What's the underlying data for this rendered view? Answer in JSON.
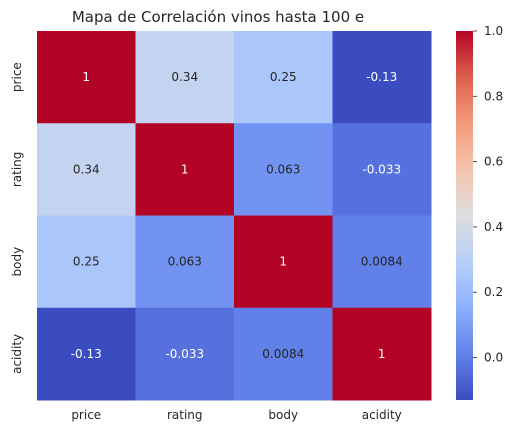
{
  "chart_data": {
    "type": "heatmap",
    "title": "Mapa de Correlación vinos hasta 100 e",
    "x_categories": [
      "price",
      "rating",
      "body",
      "acidity"
    ],
    "y_categories": [
      "price",
      "rating",
      "body",
      "acidity"
    ],
    "values": [
      [
        1,
        0.34,
        0.25,
        -0.13
      ],
      [
        0.34,
        1,
        0.063,
        -0.033
      ],
      [
        0.25,
        0.063,
        1,
        0.0084
      ],
      [
        -0.13,
        -0.033,
        0.0084,
        1
      ]
    ],
    "annotations": [
      [
        "1",
        "0.34",
        "0.25",
        "-0.13"
      ],
      [
        "0.34",
        "1",
        "0.063",
        "-0.033"
      ],
      [
        "0.25",
        "0.063",
        "1",
        "0.0084"
      ],
      [
        "-0.13",
        "-0.033",
        "0.0084",
        "1"
      ]
    ],
    "colormap": "coolwarm",
    "vmin": -0.13,
    "vmax": 1.0,
    "colorbar": {
      "ticks": [
        0.0,
        0.2,
        0.4,
        0.6,
        0.8,
        1.0
      ],
      "tick_labels": [
        "0.0",
        "0.2",
        "0.4",
        "0.6",
        "0.8",
        "1.0"
      ],
      "placement": "right"
    },
    "grid": false
  }
}
